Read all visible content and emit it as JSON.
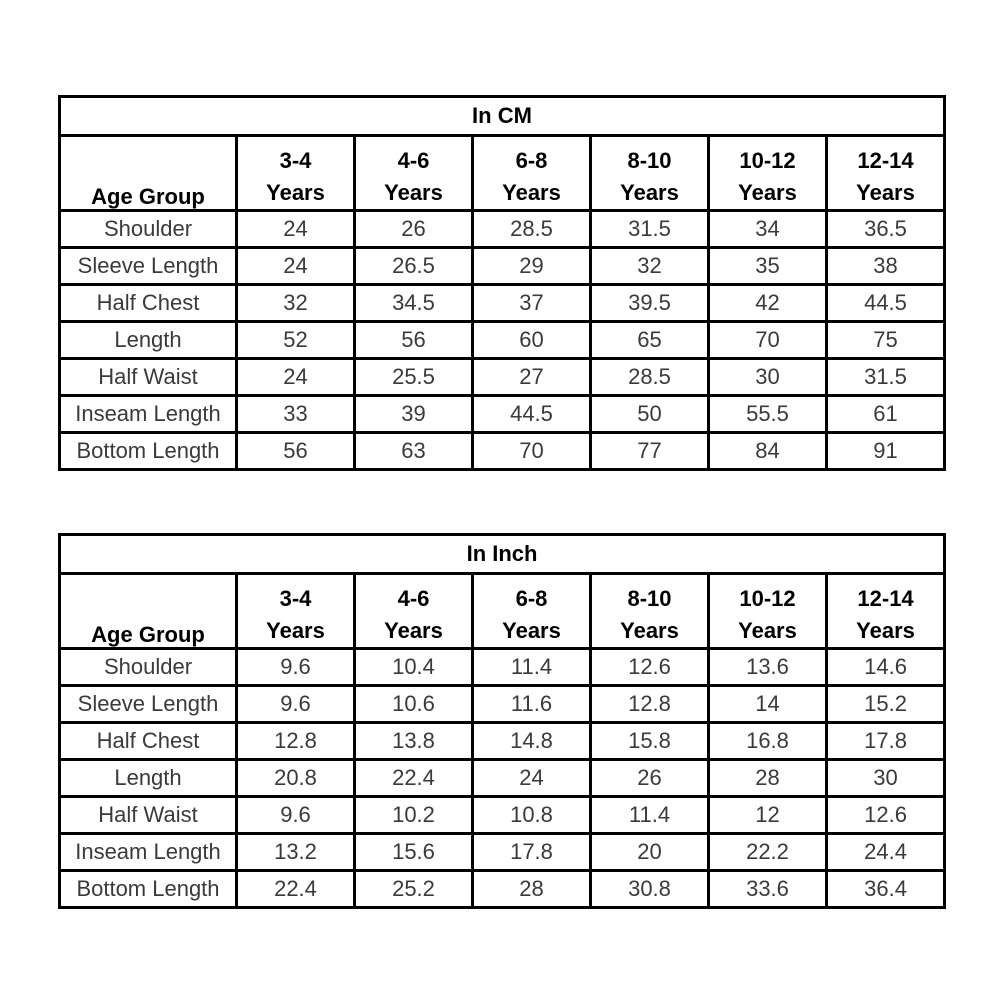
{
  "colors": {
    "background": "#ffffff",
    "border": "#000000",
    "header_text": "#000000",
    "data_text": "#3a3a3a"
  },
  "tables": [
    {
      "title": "In CM",
      "corner_label": "Age Group",
      "columns": [
        [
          "3-4",
          "Years"
        ],
        [
          "4-6",
          "Years"
        ],
        [
          "6-8",
          "Years"
        ],
        [
          "8-10",
          "Years"
        ],
        [
          "10-12",
          "Years"
        ],
        [
          "12-14",
          "Years"
        ]
      ],
      "rows": [
        {
          "label": "Shoulder",
          "values": [
            "24",
            "26",
            "28.5",
            "31.5",
            "34",
            "36.5"
          ]
        },
        {
          "label": "Sleeve Length",
          "values": [
            "24",
            "26.5",
            "29",
            "32",
            "35",
            "38"
          ]
        },
        {
          "label": "Half Chest",
          "values": [
            "32",
            "34.5",
            "37",
            "39.5",
            "42",
            "44.5"
          ]
        },
        {
          "label": "Length",
          "values": [
            "52",
            "56",
            "60",
            "65",
            "70",
            "75"
          ]
        },
        {
          "label": "Half Waist",
          "values": [
            "24",
            "25.5",
            "27",
            "28.5",
            "30",
            "31.5"
          ]
        },
        {
          "label": "Inseam Length",
          "values": [
            "33",
            "39",
            "44.5",
            "50",
            "55.5",
            "61"
          ]
        },
        {
          "label": "Bottom Length",
          "values": [
            "56",
            "63",
            "70",
            "77",
            "84",
            "91"
          ]
        }
      ]
    },
    {
      "title": "In Inch",
      "corner_label": "Age Group",
      "columns": [
        [
          "3-4",
          "Years"
        ],
        [
          "4-6",
          "Years"
        ],
        [
          "6-8",
          "Years"
        ],
        [
          "8-10",
          "Years"
        ],
        [
          "10-12",
          "Years"
        ],
        [
          "12-14",
          "Years"
        ]
      ],
      "rows": [
        {
          "label": "Shoulder",
          "values": [
            "9.6",
            "10.4",
            "11.4",
            "12.6",
            "13.6",
            "14.6"
          ]
        },
        {
          "label": "Sleeve Length",
          "values": [
            "9.6",
            "10.6",
            "11.6",
            "12.8",
            "14",
            "15.2"
          ]
        },
        {
          "label": "Half Chest",
          "values": [
            "12.8",
            "13.8",
            "14.8",
            "15.8",
            "16.8",
            "17.8"
          ]
        },
        {
          "label": "Length",
          "values": [
            "20.8",
            "22.4",
            "24",
            "26",
            "28",
            "30"
          ]
        },
        {
          "label": "Half Waist",
          "values": [
            "9.6",
            "10.2",
            "10.8",
            "11.4",
            "12",
            "12.6"
          ]
        },
        {
          "label": "Inseam Length",
          "values": [
            "13.2",
            "15.6",
            "17.8",
            "20",
            "22.2",
            "24.4"
          ]
        },
        {
          "label": "Bottom Length",
          "values": [
            "22.4",
            "25.2",
            "28",
            "30.8",
            "33.6",
            "36.4"
          ]
        }
      ]
    }
  ]
}
